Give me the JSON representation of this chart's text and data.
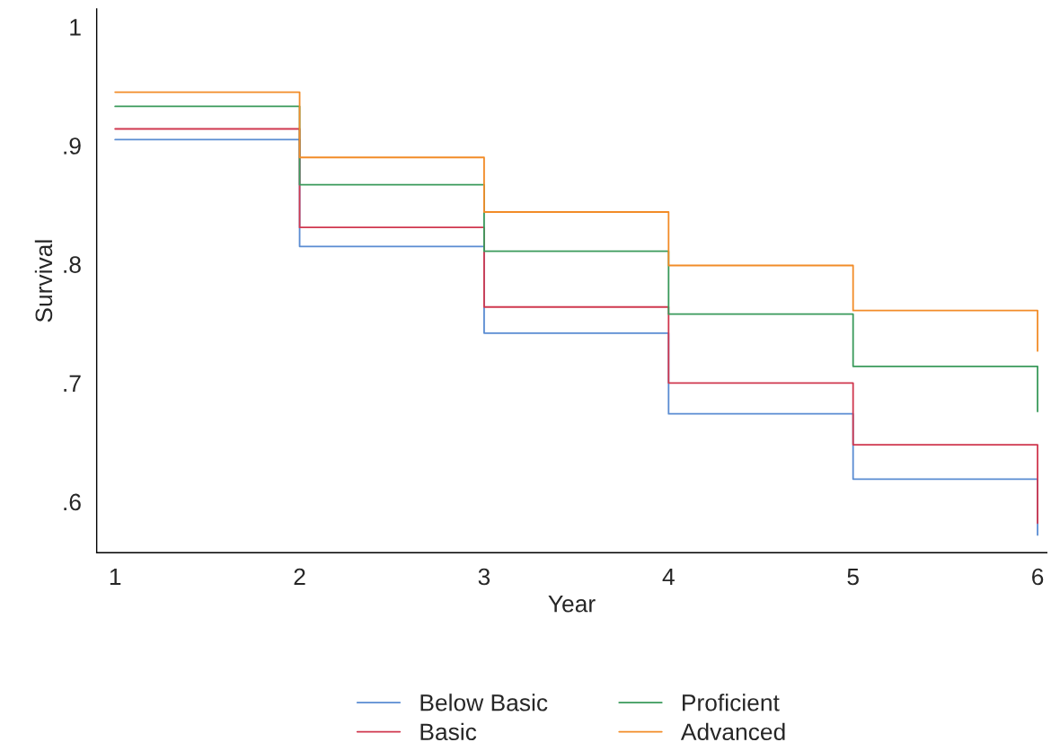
{
  "chart_data": {
    "type": "step",
    "xlabel": "Year",
    "ylabel": "Survival",
    "x": [
      1,
      2,
      3,
      4,
      5,
      6
    ],
    "series": [
      {
        "name": "Below Basic",
        "color": "#5a8cd2",
        "values": [
          0.905,
          0.815,
          0.742,
          0.674,
          0.619,
          0.572
        ]
      },
      {
        "name": "Basic",
        "color": "#d0384f",
        "values": [
          0.914,
          0.831,
          0.764,
          0.7,
          0.648,
          0.582
        ]
      },
      {
        "name": "Proficient",
        "color": "#3a9a5b",
        "values": [
          0.933,
          0.867,
          0.811,
          0.758,
          0.714,
          0.676
        ]
      },
      {
        "name": "Advanced",
        "color": "#f28c28",
        "values": [
          0.945,
          0.89,
          0.844,
          0.799,
          0.761,
          0.727
        ]
      }
    ],
    "xlim": [
      0.9,
      6.05
    ],
    "xticks": [
      1,
      2,
      3,
      4,
      5,
      6
    ],
    "ylim": [
      0.557,
      1.015
    ],
    "yticks": [
      {
        "value": 0.6,
        "label": ".6"
      },
      {
        "value": 0.7,
        "label": ".7"
      },
      {
        "value": 0.8,
        "label": ".8"
      },
      {
        "value": 0.9,
        "label": ".9"
      },
      1
    ],
    "grid": false,
    "legend": "bottom",
    "line_style": "solid"
  }
}
